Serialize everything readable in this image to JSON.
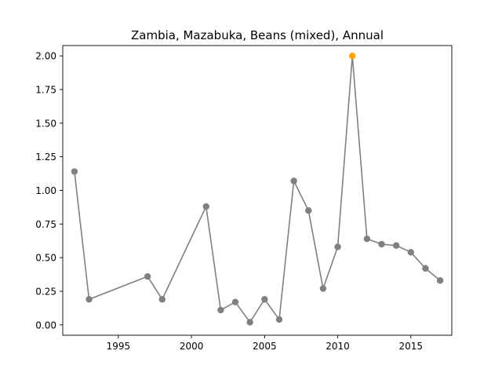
{
  "chart_data": {
    "type": "line",
    "title": "Zambia, Mazabuka, Beans (mixed), Annual",
    "xlabel": "",
    "ylabel": "",
    "xlim": [
      1991.2,
      2017.8
    ],
    "ylim": [
      -0.077,
      2.077
    ],
    "xticks": [
      1995,
      2000,
      2005,
      2010,
      2015
    ],
    "yticks": [
      0.0,
      0.25,
      0.5,
      0.75,
      1.0,
      1.25,
      1.5,
      1.75,
      2.0
    ],
    "xtick_labels": [
      "1995",
      "2000",
      "2005",
      "2010",
      "2015"
    ],
    "ytick_labels": [
      "0.00",
      "0.25",
      "0.50",
      "0.75",
      "1.00",
      "1.25",
      "1.50",
      "1.75",
      "2.00"
    ],
    "grid": false,
    "legend": "none",
    "colors": {
      "line": "#808080",
      "point": "#808080",
      "highlight": "#ffa500"
    },
    "highlight_x": 2011,
    "series": [
      {
        "x": [
          1992,
          1993,
          1997,
          1998,
          2001,
          2002,
          2003,
          2004,
          2005,
          2006,
          2007,
          2008,
          2009,
          2010,
          2011,
          2012,
          2013,
          2014,
          2015,
          2016,
          2017
        ],
        "values": [
          1.14,
          0.19,
          0.36,
          0.19,
          0.88,
          0.11,
          0.17,
          0.02,
          0.19,
          0.04,
          1.07,
          0.85,
          0.27,
          0.58,
          2.0,
          0.64,
          0.6,
          0.59,
          0.54,
          0.42,
          0.33
        ]
      }
    ]
  }
}
